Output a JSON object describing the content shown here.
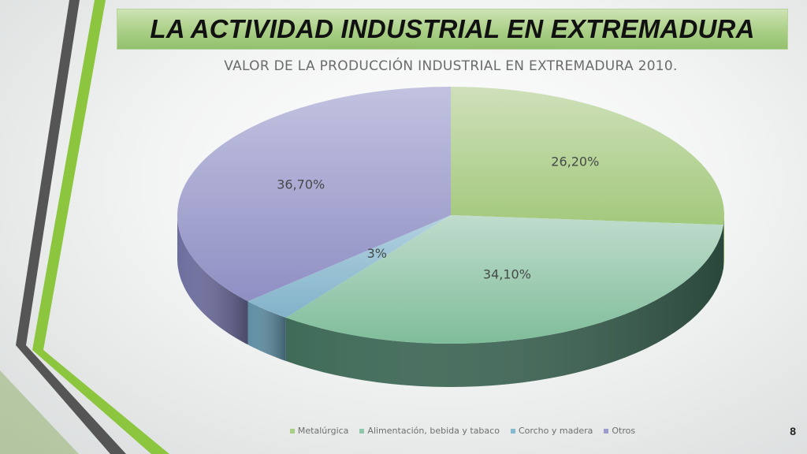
{
  "slide": {
    "title": "LA ACTIVIDAD INDUSTRIAL EN EXTREMADURA",
    "page_number": "8"
  },
  "chart_data": {
    "type": "pie",
    "title": "VALOR DE LA PRODUCCIÓN INDUSTRIAL EN EXTREMADURA 2010.",
    "legend_position": "bottom",
    "categories": [
      "Metalúrgica",
      "Alimentación, bebida y tabaco",
      "Corcho y madera",
      "Otros"
    ],
    "values": [
      26.2,
      34.1,
      3,
      36.7
    ],
    "labels": [
      "26,20%",
      "34,10%",
      "3%",
      "36,70%"
    ],
    "colors": [
      "#a9cd85",
      "#8ec8a8",
      "#86b8cf",
      "#9c9ccc"
    ]
  }
}
